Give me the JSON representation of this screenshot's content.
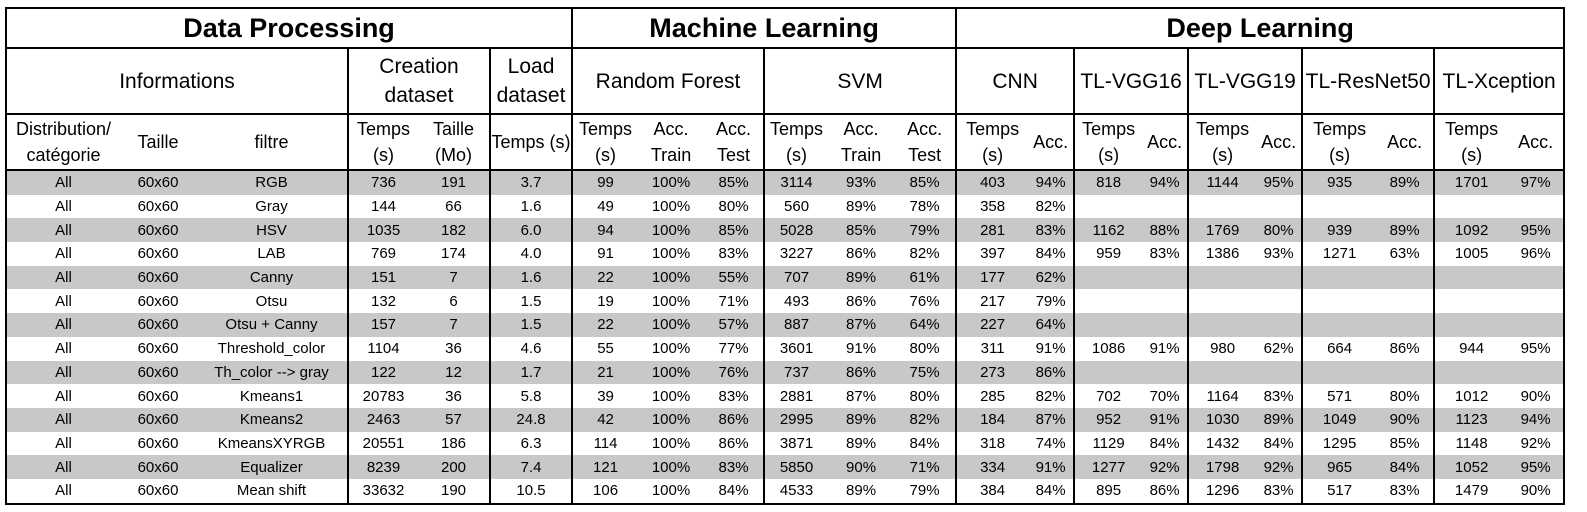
{
  "sections": [
    "Data Processing",
    "Machine Learning",
    "Deep Learning"
  ],
  "groups": [
    "Informations",
    "Creation dataset",
    "Load dataset",
    "Random Forest",
    "SVM",
    "CNN",
    "TL-VGG16",
    "TL-VGG19",
    "TL-ResNet50",
    "TL-Xception"
  ],
  "columns": [
    "Distribution/ catégorie",
    "Taille",
    "filtre",
    "Temps (s)",
    "Taille (Mo)",
    "Temps (s)",
    "Temps (s)",
    "Acc. Train",
    "Acc. Test",
    "Temps (s)",
    "Acc. Train",
    "Acc. Test",
    "Temps (s)",
    "Acc.",
    "Temps (s)",
    "Acc.",
    "Temps (s)",
    "Acc.",
    "Temps (s)",
    "Acc.",
    "Temps (s)",
    "Acc."
  ],
  "rows": [
    [
      "All",
      "60x60",
      "RGB",
      "736",
      "191",
      "3.7",
      "99",
      "100%",
      "85%",
      "3114",
      "93%",
      "85%",
      "403",
      "94%",
      "818",
      "94%",
      "1144",
      "95%",
      "935",
      "89%",
      "1701",
      "97%"
    ],
    [
      "All",
      "60x60",
      "Gray",
      "144",
      "66",
      "1.6",
      "49",
      "100%",
      "80%",
      "560",
      "89%",
      "78%",
      "358",
      "82%",
      "",
      "",
      "",
      "",
      "",
      "",
      "",
      ""
    ],
    [
      "All",
      "60x60",
      "HSV",
      "1035",
      "182",
      "6.0",
      "94",
      "100%",
      "85%",
      "5028",
      "85%",
      "79%",
      "281",
      "83%",
      "1162",
      "88%",
      "1769",
      "80%",
      "939",
      "89%",
      "1092",
      "95%"
    ],
    [
      "All",
      "60x60",
      "LAB",
      "769",
      "174",
      "4.0",
      "91",
      "100%",
      "83%",
      "3227",
      "86%",
      "82%",
      "397",
      "84%",
      "959",
      "83%",
      "1386",
      "93%",
      "1271",
      "63%",
      "1005",
      "96%"
    ],
    [
      "All",
      "60x60",
      "Canny",
      "151",
      "7",
      "1.6",
      "22",
      "100%",
      "55%",
      "707",
      "89%",
      "61%",
      "177",
      "62%",
      "",
      "",
      "",
      "",
      "",
      "",
      "",
      ""
    ],
    [
      "All",
      "60x60",
      "Otsu",
      "132",
      "6",
      "1.5",
      "19",
      "100%",
      "71%",
      "493",
      "86%",
      "76%",
      "217",
      "79%",
      "",
      "",
      "",
      "",
      "",
      "",
      "",
      ""
    ],
    [
      "All",
      "60x60",
      "Otsu + Canny",
      "157",
      "7",
      "1.5",
      "22",
      "100%",
      "57%",
      "887",
      "87%",
      "64%",
      "227",
      "64%",
      "",
      "",
      "",
      "",
      "",
      "",
      "",
      ""
    ],
    [
      "All",
      "60x60",
      "Threshold_color",
      "1104",
      "36",
      "4.6",
      "55",
      "100%",
      "77%",
      "3601",
      "91%",
      "80%",
      "311",
      "91%",
      "1086",
      "91%",
      "980",
      "62%",
      "664",
      "86%",
      "944",
      "95%"
    ],
    [
      "All",
      "60x60",
      "Th_color --> gray",
      "122",
      "12",
      "1.7",
      "21",
      "100%",
      "76%",
      "737",
      "86%",
      "75%",
      "273",
      "86%",
      "",
      "",
      "",
      "",
      "",
      "",
      "",
      ""
    ],
    [
      "All",
      "60x60",
      "Kmeans1",
      "20783",
      "36",
      "5.8",
      "39",
      "100%",
      "83%",
      "2881",
      "87%",
      "80%",
      "285",
      "82%",
      "702",
      "70%",
      "1164",
      "83%",
      "571",
      "80%",
      "1012",
      "90%"
    ],
    [
      "All",
      "60x60",
      "Kmeans2",
      "2463",
      "57",
      "24.8",
      "42",
      "100%",
      "86%",
      "2995",
      "89%",
      "82%",
      "184",
      "87%",
      "952",
      "91%",
      "1030",
      "89%",
      "1049",
      "90%",
      "1123",
      "94%"
    ],
    [
      "All",
      "60x60",
      "KmeansXYRGB",
      "20551",
      "186",
      "6.3",
      "114",
      "100%",
      "86%",
      "3871",
      "89%",
      "84%",
      "318",
      "74%",
      "1129",
      "84%",
      "1432",
      "84%",
      "1295",
      "85%",
      "1148",
      "92%"
    ],
    [
      "All",
      "60x60",
      "Equalizer",
      "8239",
      "200",
      "7.4",
      "121",
      "100%",
      "83%",
      "5850",
      "90%",
      "71%",
      "334",
      "91%",
      "1277",
      "92%",
      "1798",
      "92%",
      "965",
      "84%",
      "1052",
      "95%"
    ],
    [
      "All",
      "60x60",
      "Mean shift",
      "33632",
      "190",
      "10.5",
      "106",
      "100%",
      "84%",
      "4533",
      "89%",
      "79%",
      "384",
      "84%",
      "895",
      "86%",
      "1296",
      "83%",
      "517",
      "83%",
      "1479",
      "90%"
    ]
  ]
}
